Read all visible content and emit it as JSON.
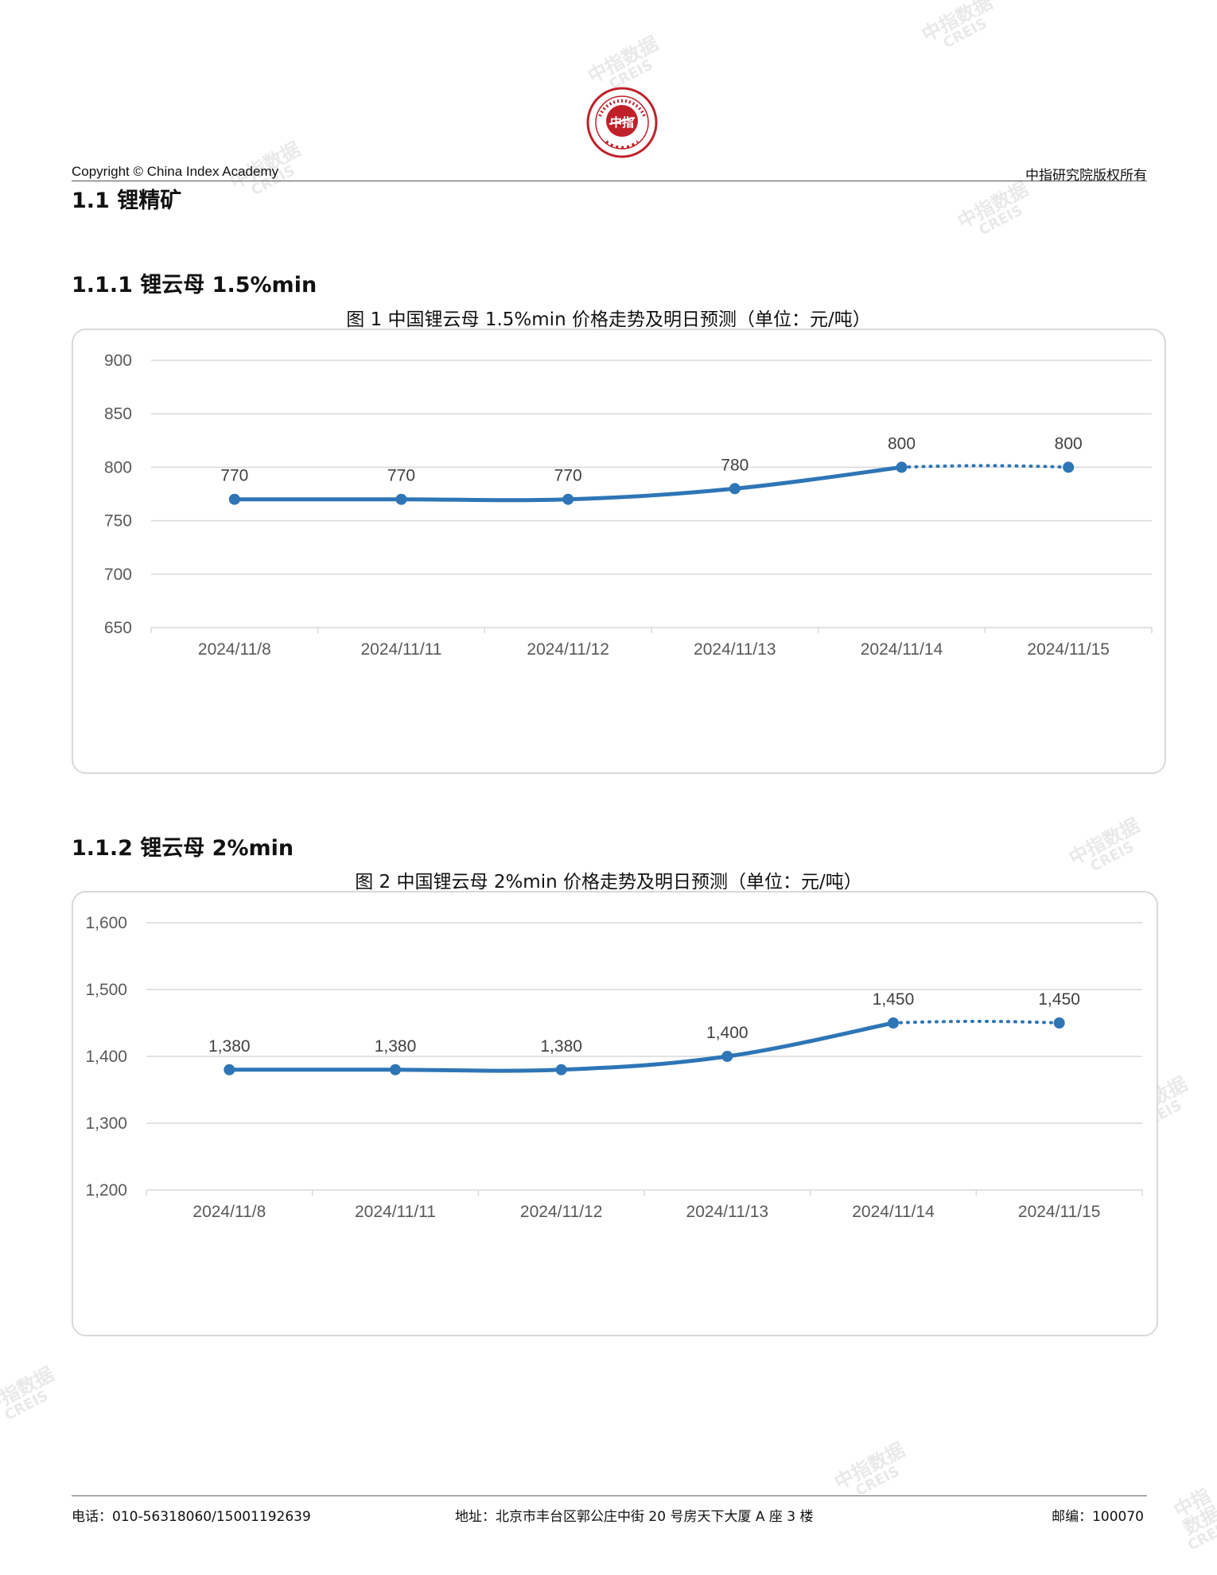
{
  "header": {
    "copyright": "Copyright © China Index Academy",
    "rights": "中指研究院版权所有",
    "logo_text": "中指"
  },
  "watermark": {
    "cn": "中指数据",
    "en": "CREIS"
  },
  "section": {
    "title": "1.1 锂精矿"
  },
  "charts": [
    {
      "heading": "1.1.1 锂云母 1.5%min",
      "caption": "图 1 中国锂云母 1.5%min 价格走势及明日预测（单位：元/吨）"
    },
    {
      "heading": "1.1.2 锂云母 2%min",
      "caption": "图 2 中国锂云母 2%min 价格走势及明日预测（单位：元/吨）"
    }
  ],
  "chart_data": [
    {
      "type": "line",
      "categories": [
        "2024/11/8",
        "2024/11/11",
        "2024/11/12",
        "2024/11/13",
        "2024/11/14",
        "2024/11/15"
      ],
      "series": [
        {
          "values": [
            770,
            770,
            770,
            780,
            800,
            800
          ],
          "labels": [
            "770",
            "770",
            "770",
            "780",
            "800",
            "800"
          ],
          "forecast_last": true
        }
      ],
      "yticks": [
        "650",
        "700",
        "750",
        "800",
        "850",
        "900"
      ],
      "ylim": [
        650,
        900
      ],
      "grid": true,
      "color": "#2e75b6"
    },
    {
      "type": "line",
      "categories": [
        "2024/11/8",
        "2024/11/11",
        "2024/11/12",
        "2024/11/13",
        "2024/11/14",
        "2024/11/15"
      ],
      "series": [
        {
          "values": [
            1380,
            1380,
            1380,
            1400,
            1450,
            1450
          ],
          "labels": [
            "1,380",
            "1,380",
            "1,380",
            "1,400",
            "1,450",
            "1,450"
          ],
          "forecast_last": true
        }
      ],
      "yticks": [
        "1,200",
        "1,300",
        "1,400",
        "1,500",
        "1,600"
      ],
      "ylim": [
        1200,
        1600
      ],
      "grid": true,
      "color": "#2e75b6"
    }
  ],
  "footer": {
    "phone": "电话：010-56318060/15001192639",
    "address": "地址：北京市丰台区郭公庄中街 20 号房天下大厦 A 座 3 楼",
    "postcode": "邮编：100070"
  }
}
